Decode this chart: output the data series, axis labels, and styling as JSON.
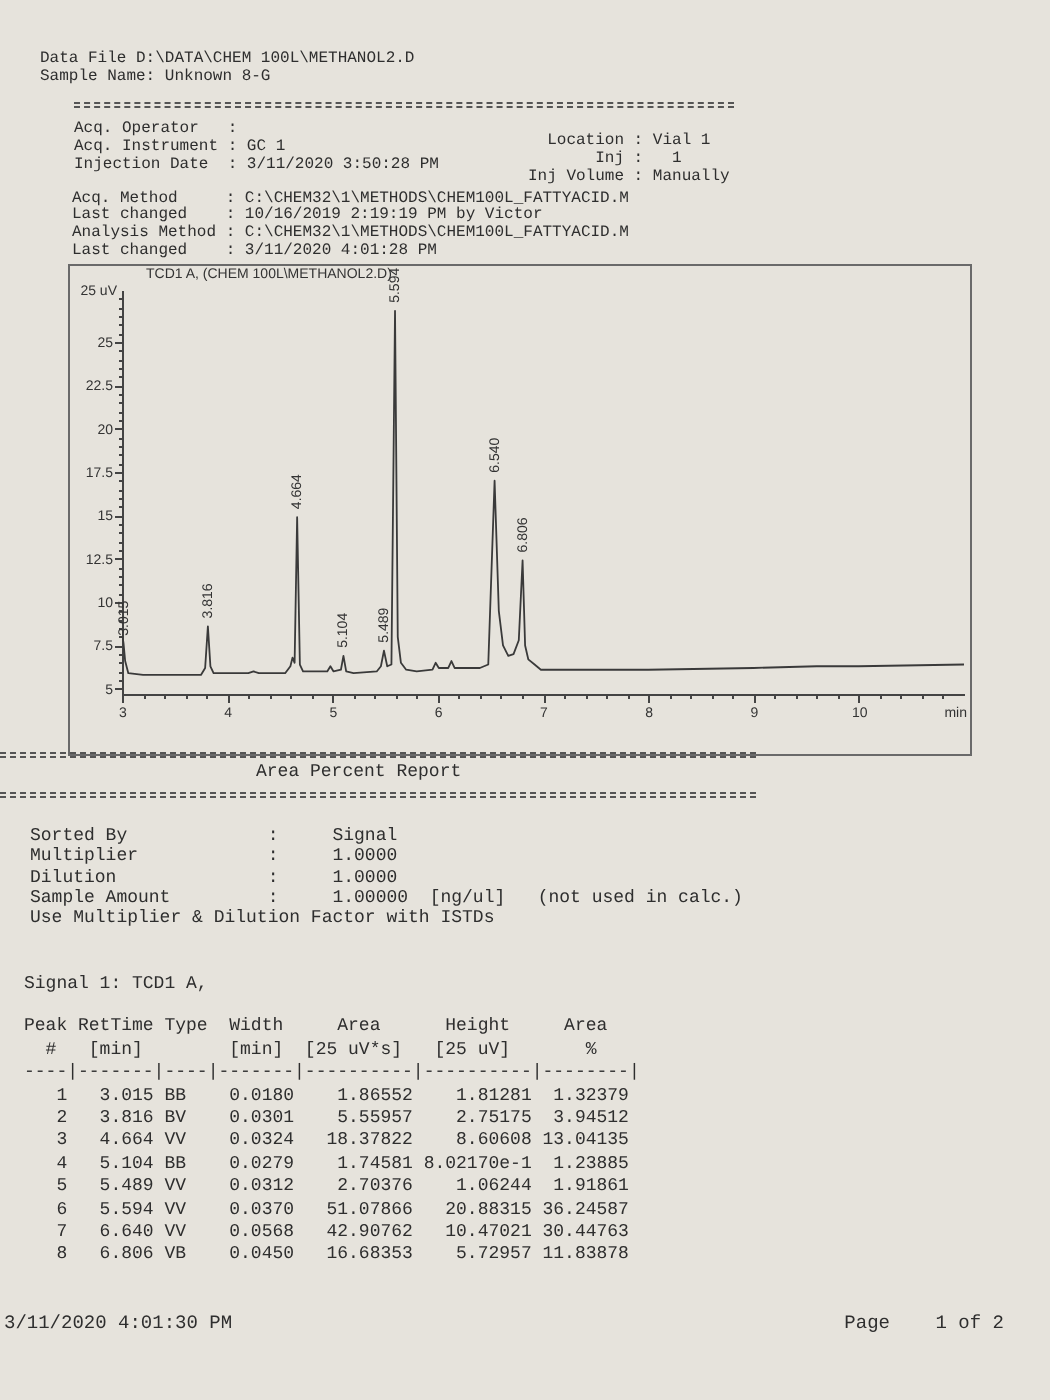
{
  "chart_data": [
    {
      "type": "other",
      "annotations": [
        "Data File D:\\DATA\\CHEM 100L\\METHANOL2.D",
        "Sample Name: Unknown 8-G"
      ]
    },
    {
      "type": "other",
      "annotations": [
        "Acq. Operator   :",
        "Acq. Instrument : GC 1",
        "Injection Date  : 3/11/2020 3:50:28 PM"
      ]
    },
    {
      "type": "other",
      "annotations": [
        "  Location : Vial 1",
        "       Inj :   1",
        "Inj Volume : Manually"
      ]
    },
    {
      "type": "other",
      "annotations": [
        "Acq. Method     : C:\\CHEM32\\1\\METHODS\\CHEM100L_FATTYACID.M",
        "Last changed    : 10/16/2019 2:19:19 PM by Victor",
        "Analysis Method : C:\\CHEM32\\1\\METHODS\\CHEM100L_FATTYACID.M",
        "Last changed    : 3/11/2020 4:01:28 PM"
      ]
    },
    {
      "type": "line",
      "title": "TCD1 A, (CHEM 100L\\METHANOL2.D)",
      "xlabel": "min",
      "ylabel": "25 uV",
      "color": "#3a3a3a",
      "x": [
        3.0,
        3.01,
        3.015,
        3.03,
        3.06,
        3.2,
        3.5,
        3.75,
        3.79,
        3.816,
        3.84,
        3.87,
        4.2,
        4.25,
        4.3,
        4.55,
        4.6,
        4.62,
        4.64,
        4.664,
        4.69,
        4.72,
        4.95,
        4.98,
        5.01,
        5.08,
        5.104,
        5.13,
        5.2,
        5.42,
        5.46,
        5.489,
        5.52,
        5.56,
        5.594,
        5.62,
        5.65,
        5.7,
        5.8,
        5.95,
        5.98,
        6.01,
        6.1,
        6.13,
        6.16,
        6.4,
        6.48,
        6.54,
        6.58,
        6.62,
        6.67,
        6.72,
        6.77,
        6.806,
        6.83,
        6.86,
        6.92,
        6.98,
        7.2,
        8.0,
        9.0,
        9.6,
        10.0,
        11.0
      ],
      "values": [
        8.2,
        7.8,
        7.6,
        6.6,
        5.9,
        5.8,
        5.8,
        5.8,
        6.2,
        8.6,
        6.3,
        5.9,
        5.9,
        6.0,
        5.9,
        5.9,
        6.3,
        6.8,
        6.5,
        14.9,
        6.4,
        6.0,
        6.0,
        6.3,
        6.0,
        6.1,
        6.9,
        6.0,
        5.9,
        6.0,
        6.3,
        7.2,
        6.3,
        6.4,
        26.8,
        8.0,
        6.5,
        6.1,
        6.0,
        6.1,
        6.5,
        6.2,
        6.2,
        6.6,
        6.2,
        6.2,
        6.4,
        17.0,
        9.5,
        7.5,
        6.9,
        7.0,
        7.8,
        12.4,
        7.5,
        6.7,
        6.4,
        6.1,
        6.1,
        6.1,
        6.2,
        6.3,
        6.3,
        6.4
      ],
      "xlim": [
        3,
        11
      ],
      "ylim": [
        4.7,
        28
      ],
      "xticks": [
        3,
        {
          "value": 3.2,
          "label": null
        },
        {
          "value": 3.4,
          "label": null
        },
        {
          "value": 3.6,
          "label": null
        },
        {
          "value": 3.8,
          "label": null
        },
        4,
        {
          "value": 4.2,
          "label": null
        },
        {
          "value": 4.4,
          "label": null
        },
        {
          "value": 4.6,
          "label": null
        },
        {
          "value": 4.8,
          "label": null
        },
        5,
        {
          "value": 5.2,
          "label": null
        },
        {
          "value": 5.4,
          "label": null
        },
        {
          "value": 5.6,
          "label": null
        },
        {
          "value": 5.8,
          "label": null
        },
        6,
        {
          "value": 6.2,
          "label": null
        },
        {
          "value": 6.4,
          "label": null
        },
        {
          "value": 6.6,
          "label": null
        },
        {
          "value": 6.8,
          "label": null
        },
        7,
        {
          "value": 7.2,
          "label": null
        },
        {
          "value": 7.4,
          "label": null
        },
        {
          "value": 7.6,
          "label": null
        },
        {
          "value": 7.8,
          "label": null
        },
        8,
        {
          "value": 8.2,
          "label": null
        },
        {
          "value": 8.4,
          "label": null
        },
        {
          "value": 8.6,
          "label": null
        },
        {
          "value": 8.8,
          "label": null
        },
        9,
        {
          "value": 9.2,
          "label": null
        },
        {
          "value": 9.4,
          "label": null
        },
        {
          "value": 9.6,
          "label": null
        },
        {
          "value": 9.8,
          "label": null
        },
        10,
        {
          "value": 10.2,
          "label": null
        },
        {
          "value": 10.4,
          "label": null
        },
        {
          "value": 10.6,
          "label": null
        },
        {
          "value": 10.8,
          "label": null
        }
      ],
      "yticks": [
        5,
        {
          "value": 5.5,
          "label": null
        },
        {
          "value": 6,
          "label": null
        },
        {
          "value": 6.5,
          "label": null
        },
        {
          "value": 7,
          "label": null
        },
        7.5,
        {
          "value": 8,
          "label": null
        },
        {
          "value": 8.5,
          "label": null
        },
        {
          "value": 9,
          "label": null
        },
        {
          "value": 9.5,
          "label": null
        },
        10,
        {
          "value": 10.5,
          "label": null
        },
        {
          "value": 11,
          "label": null
        },
        {
          "value": 11.5,
          "label": null
        },
        {
          "value": 12,
          "label": null
        },
        12.5,
        {
          "value": 13,
          "label": null
        },
        {
          "value": 13.5,
          "label": null
        },
        {
          "value": 14,
          "label": null
        },
        {
          "value": 14.5,
          "label": null
        },
        15,
        {
          "value": 15.5,
          "label": null
        },
        {
          "value": 16,
          "label": null
        },
        {
          "value": 16.5,
          "label": null
        },
        {
          "value": 17,
          "label": null
        },
        17.5,
        {
          "value": 18,
          "label": null
        },
        {
          "value": 18.5,
          "label": null
        },
        {
          "value": 19,
          "label": null
        },
        {
          "value": 19.5,
          "label": null
        },
        20,
        {
          "value": 20.5,
          "label": null
        },
        {
          "value": 21,
          "label": null
        },
        {
          "value": 21.5,
          "label": null
        },
        {
          "value": 22,
          "label": null
        },
        22.5,
        {
          "value": 23,
          "label": null
        },
        {
          "value": 23.5,
          "label": null
        },
        {
          "value": 24,
          "label": null
        },
        {
          "value": 24.5,
          "label": null
        },
        25,
        {
          "value": 25.5,
          "label": null
        },
        {
          "value": 26,
          "label": null
        },
        {
          "value": 26.5,
          "label": null
        },
        {
          "value": 27,
          "label": null
        },
        {
          "value": 27.5,
          "label": null
        }
      ],
      "annotations": [
        {
          "text": "3.015",
          "x": 3.015,
          "y": 7.6
        },
        {
          "text": "3.816",
          "x": 3.816,
          "y": 8.6
        },
        {
          "text": "4.664",
          "x": 4.664,
          "y": 14.9
        },
        {
          "text": "5.104",
          "x": 5.104,
          "y": 6.9
        },
        {
          "text": "5.489",
          "x": 5.489,
          "y": 7.2
        },
        {
          "text": "5.594",
          "x": 5.594,
          "y": 26.8
        },
        {
          "text": "6.540",
          "x": 6.54,
          "y": 17.0
        },
        {
          "text": "6.806",
          "x": 6.806,
          "y": 12.4
        }
      ]
    },
    {
      "type": "other",
      "title": "Area Percent Report",
      "annotations": [
        "Sorted By             :     Signal",
        "Multiplier            :     1.0000",
        "Dilution              :     1.0000",
        "Sample Amount         :     1.00000  [ng/ul]   (not used in calc.)",
        "Use Multiplier & Dilution Factor with ISTDs"
      ]
    },
    {
      "type": "other",
      "title": "Signal 1: TCD1 A,",
      "annotations": [
        "Peak RetTime Type  Width     Area      Height     Area",
        "  #   [min]        [min]  [25 uV*s]   [25 uV]       %",
        "----|-------|----|-------|----------|----------|--------|",
        "   1   3.015 BB    0.0180    1.86552    1.81281  1.32379",
        "   2   3.816 BV    0.0301    5.55957    2.75175  3.94512",
        "   3   4.664 VV    0.0324   18.37822    8.60608 13.04135",
        "   4   5.104 BB    0.0279    1.74581 8.02170e-1  1.23885",
        "   5   5.489 VV    0.0312    2.70376    1.06244  1.91861",
        "   6   5.594 VV    0.0370   51.07866   20.88315 36.24587",
        "   7   6.640 VV    0.0568   42.90762   10.47021 30.44763",
        "   8   6.806 VB    0.0450   16.68353    5.72957 11.83878"
      ]
    },
    {
      "type": "other",
      "annotations": [
        "3/11/2020 4:01:30 PM",
        "Page    1 of 2"
      ]
    }
  ]
}
